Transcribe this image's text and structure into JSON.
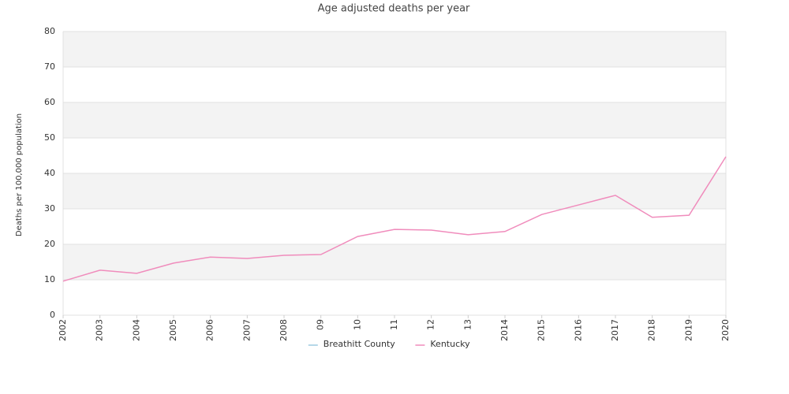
{
  "chart_data": {
    "type": "line",
    "title": "Age adjusted deaths per year",
    "y_label": "Deaths per 100,000 population",
    "categories": [
      "2002",
      "2003",
      "2004",
      "2005",
      "2006",
      "2007",
      "2008",
      "09",
      "10",
      "11",
      "12",
      "13",
      "2014",
      "2015",
      "2016",
      "2017",
      "2018",
      "2019",
      "2020"
    ],
    "series": [
      {
        "name": "Breathitt County",
        "color": "#9ecae1",
        "values": [
          null,
          null,
          null,
          null,
          null,
          null,
          null,
          null,
          null,
          null,
          null,
          null,
          null,
          null,
          null,
          null,
          null,
          null,
          null
        ]
      },
      {
        "name": "Kentucky",
        "color": "#f08cbc",
        "values": [
          9.6,
          12.7,
          11.8,
          14.7,
          16.4,
          16.0,
          16.9,
          17.1,
          22.2,
          24.2,
          24.0,
          22.7,
          23.6,
          28.4,
          31.1,
          33.8,
          27.6,
          28.2,
          44.7
        ]
      }
    ],
    "ylim": [
      0,
      80
    ],
    "yticks": [
      0,
      10,
      20,
      30,
      40,
      50,
      60,
      70,
      80
    ],
    "grid": true,
    "legend": "bottom"
  }
}
